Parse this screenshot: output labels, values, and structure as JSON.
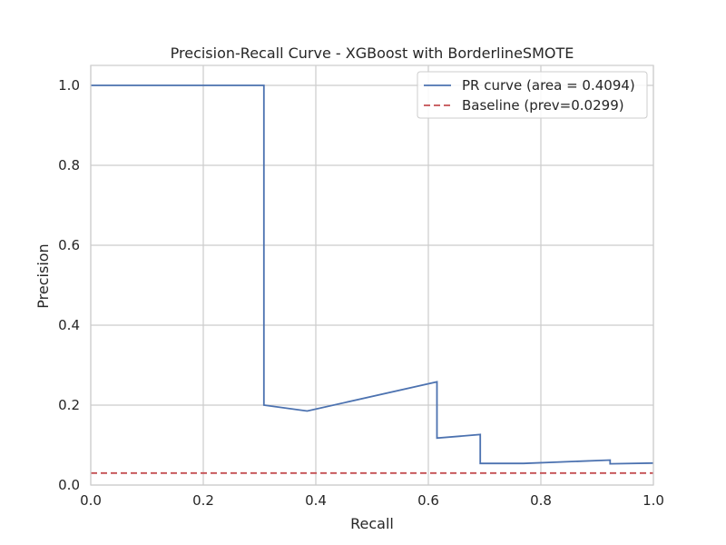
{
  "chart_data": {
    "type": "line",
    "title": "Precision-Recall Curve - XGBoost with BorderlineSMOTE",
    "xlabel": "Recall",
    "ylabel": "Precision",
    "xlim": [
      0.0,
      1.0
    ],
    "ylim": [
      0.0,
      1.05
    ],
    "xticks": [
      "0.0",
      "0.2",
      "0.4",
      "0.6",
      "0.8",
      "1.0"
    ],
    "yticks": [
      "0.0",
      "0.2",
      "0.4",
      "0.6",
      "0.8",
      "1.0"
    ],
    "grid": true,
    "legend_position": "top-right",
    "series": [
      {
        "name": "PR curve (area = 0.4094)",
        "color": "#4c72b0",
        "style": "solid",
        "x": [
          0.0,
          0.3077,
          0.3077,
          0.3846,
          0.6154,
          0.6154,
          0.6923,
          0.6923,
          0.7692,
          0.9231,
          0.9231,
          1.0
        ],
        "y": [
          1.0,
          1.0,
          0.2,
          0.1852,
          0.2581,
          0.1176,
          0.1263,
          0.0541,
          0.0541,
          0.0625,
          0.0531,
          0.0551
        ]
      },
      {
        "name": "Baseline (prev=0.0299)",
        "color": "#c44e52",
        "style": "dashed",
        "x": [
          0.0,
          1.0
        ],
        "y": [
          0.0299,
          0.0299
        ]
      }
    ]
  }
}
